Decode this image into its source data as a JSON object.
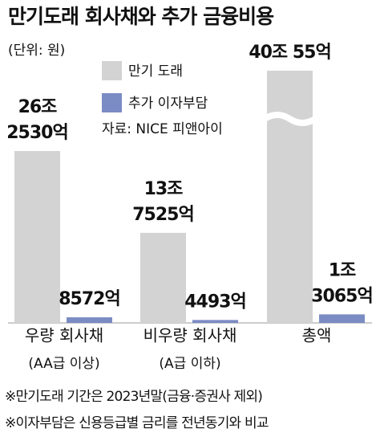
{
  "chart_data": {
    "type": "bar",
    "title": "만기도래 회사채와 추가 금융비용",
    "unit": "(단위: 원)",
    "source": "자료: NICE 피앤아이",
    "categories": [
      "우량 회사채",
      "비우량 회사채",
      "총액"
    ],
    "subcategories": [
      "(AA급 이상)",
      "(A급 이하)",
      null
    ],
    "series": [
      {
        "name": "만기 도래",
        "color": "#d3d3d3",
        "values": [
          262530,
          137525,
          400055
        ],
        "value_labels": [
          "26조\n2530억",
          "13조\n7525억",
          "40조 55억"
        ]
      },
      {
        "name": "추가 이자부담",
        "color": "#7b8cc4",
        "values": [
          8572,
          4493,
          13065
        ],
        "value_labels": [
          "8572억",
          "4493억",
          "1조\n3065억"
        ]
      }
    ],
    "notes": [
      "※만기도래 기간은 2023년말(금융·증권사 제외)",
      "※이자부담은 신용등급별 금리를 전년동기와 비교"
    ]
  }
}
